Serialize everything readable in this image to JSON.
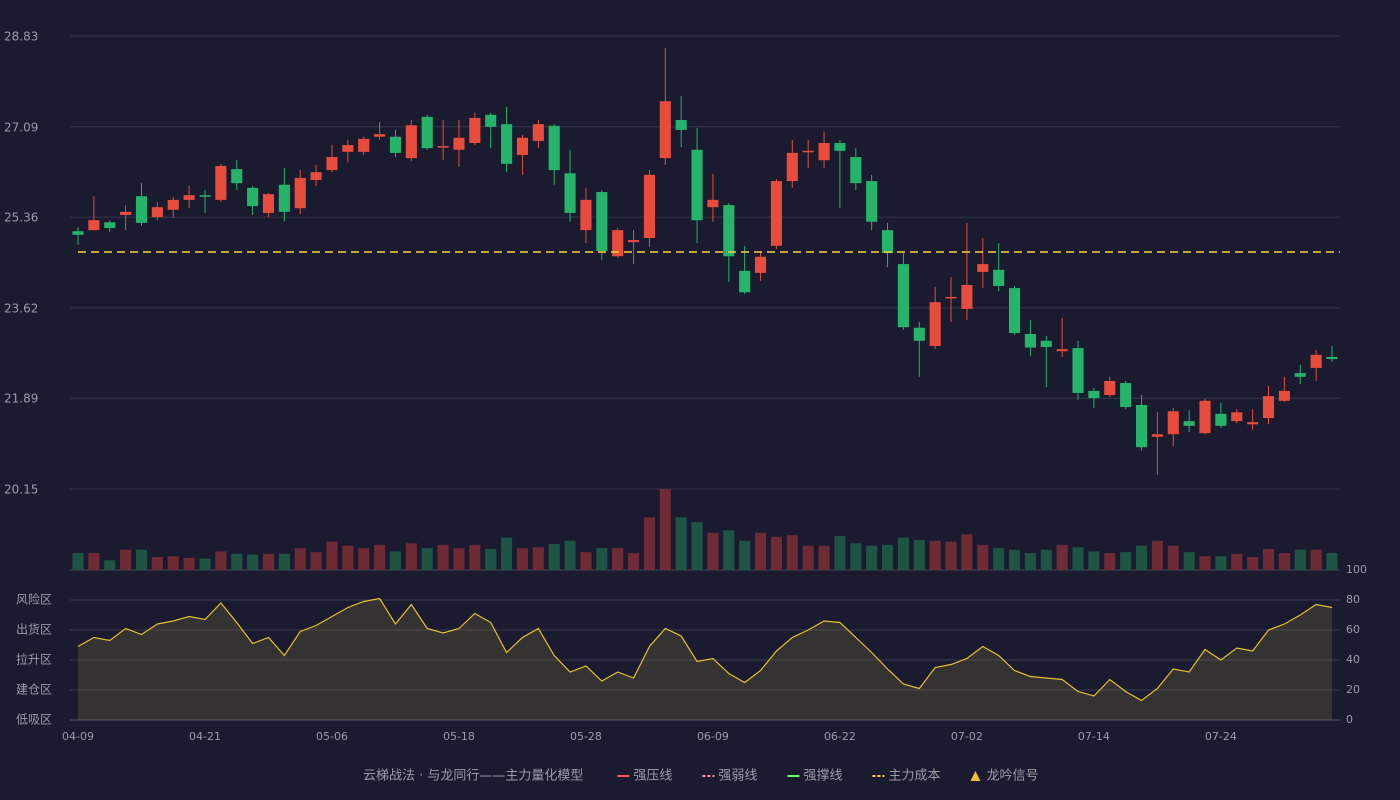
{
  "chart_data": [
    {
      "type": "candlestick",
      "up_color": "#e84c3d",
      "down_color": "#26b36a",
      "volume_up_color": "#6e2a35",
      "volume_down_color": "#1e5444",
      "categories": [
        "04-09",
        null,
        null,
        null,
        null,
        null,
        null,
        null,
        "04-21",
        null,
        null,
        null,
        null,
        null,
        null,
        null,
        "05-06",
        null,
        null,
        null,
        null,
        null,
        null,
        null,
        "05-18",
        null,
        null,
        null,
        null,
        null,
        null,
        null,
        "05-28",
        null,
        null,
        null,
        null,
        null,
        null,
        null,
        "06-09",
        null,
        null,
        null,
        null,
        null,
        null,
        null,
        "06-22",
        null,
        null,
        null,
        null,
        null,
        null,
        null,
        "07-02",
        null,
        null,
        null,
        null,
        null,
        null,
        null,
        "07-14",
        null,
        null,
        null,
        null,
        null,
        null,
        null,
        "07-24",
        null,
        null,
        null,
        null,
        null,
        null,
        null
      ],
      "open": [
        25.09,
        25.11,
        25.26,
        25.4,
        25.76,
        25.36,
        25.5,
        25.69,
        25.78,
        25.69,
        26.28,
        25.92,
        25.44,
        25.98,
        25.53,
        26.07,
        26.26,
        26.61,
        26.61,
        26.9,
        26.9,
        26.49,
        27.28,
        26.7,
        26.65,
        26.78,
        27.32,
        27.14,
        26.55,
        26.82,
        27.11,
        26.2,
        25.11,
        25.84,
        24.61,
        24.88,
        24.96,
        26.49,
        27.22,
        26.65,
        25.55,
        25.59,
        24.33,
        24.29,
        24.81,
        26.05,
        26.61,
        26.45,
        26.78,
        26.51,
        26.05,
        25.11,
        24.46,
        23.24,
        22.89,
        23.81,
        23.6,
        24.31,
        24.35,
        24.0,
        23.12,
        22.99,
        22.79,
        22.85,
        22.03,
        21.95,
        22.18,
        21.76,
        21.15,
        21.2,
        21.45,
        21.22,
        21.59,
        21.45,
        21.39,
        21.51,
        21.84,
        22.37,
        22.47,
        22.68
      ],
      "high": [
        25.17,
        25.76,
        25.3,
        25.59,
        26.01,
        25.65,
        25.75,
        25.96,
        25.88,
        26.38,
        26.45,
        25.96,
        25.82,
        26.3,
        26.26,
        26.36,
        26.74,
        26.84,
        26.9,
        27.18,
        27.03,
        27.22,
        27.32,
        27.22,
        27.22,
        27.36,
        27.36,
        27.47,
        26.93,
        27.22,
        27.14,
        26.65,
        25.92,
        25.88,
        25.15,
        25.11,
        26.26,
        28.6,
        27.68,
        27.07,
        26.19,
        25.63,
        24.81,
        24.71,
        26.09,
        26.84,
        26.84,
        27.0,
        26.84,
        26.68,
        26.17,
        25.25,
        24.67,
        23.35,
        24.02,
        24.21,
        25.25,
        24.96,
        24.86,
        24.04,
        23.39,
        23.08,
        23.43,
        22.99,
        22.09,
        22.3,
        22.22,
        21.95,
        21.62,
        21.7,
        21.66,
        21.88,
        21.8,
        21.68,
        21.68,
        22.12,
        22.3,
        22.53,
        22.81,
        22.89
      ],
      "low": [
        24.83,
        25.11,
        25.07,
        25.11,
        25.19,
        25.3,
        25.34,
        25.53,
        25.44,
        25.65,
        25.88,
        25.4,
        25.36,
        25.28,
        25.42,
        25.96,
        26.22,
        26.41,
        26.55,
        26.84,
        26.51,
        26.43,
        26.65,
        26.45,
        26.32,
        26.74,
        26.68,
        26.22,
        26.17,
        26.68,
        25.98,
        25.27,
        24.86,
        24.54,
        24.58,
        24.46,
        24.79,
        26.36,
        26.7,
        24.86,
        25.27,
        24.12,
        23.88,
        24.14,
        24.75,
        25.92,
        26.3,
        26.3,
        25.53,
        25.88,
        25.11,
        24.4,
        23.2,
        22.3,
        22.83,
        23.35,
        23.39,
        24.0,
        23.94,
        23.1,
        22.7,
        22.1,
        22.68,
        21.86,
        21.7,
        21.91,
        21.68,
        20.88,
        20.42,
        20.97,
        21.24,
        21.2,
        21.32,
        21.41,
        21.28,
        21.39,
        21.82,
        22.16,
        22.22,
        22.58
      ],
      "close": [
        25.02,
        25.3,
        25.15,
        25.46,
        25.25,
        25.55,
        25.69,
        25.78,
        25.75,
        26.34,
        26.01,
        25.57,
        25.8,
        25.46,
        26.11,
        26.22,
        26.51,
        26.74,
        26.86,
        26.95,
        26.59,
        27.12,
        26.68,
        26.72,
        26.88,
        27.26,
        27.09,
        26.38,
        26.88,
        27.14,
        26.26,
        25.44,
        25.69,
        24.71,
        25.11,
        24.92,
        26.17,
        27.58,
        27.03,
        25.3,
        25.69,
        24.61,
        23.92,
        24.6,
        26.05,
        26.59,
        26.63,
        26.78,
        26.63,
        26.01,
        25.27,
        24.67,
        23.25,
        22.99,
        23.73,
        23.83,
        24.06,
        24.46,
        24.04,
        23.14,
        22.86,
        22.87,
        22.83,
        21.99,
        21.89,
        22.22,
        21.72,
        20.95,
        21.2,
        21.64,
        21.36,
        21.84,
        21.36,
        21.62,
        21.43,
        21.93,
        22.03,
        22.3,
        22.72,
        22.64
      ],
      "volume": [
        21,
        21,
        12,
        25,
        25,
        16,
        17,
        15,
        14,
        23,
        20,
        19,
        20,
        20,
        27,
        22,
        35,
        30,
        27,
        31,
        23,
        33,
        27,
        31,
        27,
        31,
        26,
        40,
        27,
        28,
        32,
        36,
        22,
        27,
        27,
        21,
        65,
        100,
        65,
        59,
        46,
        49,
        36,
        46,
        41,
        43,
        30,
        30,
        42,
        33,
        30,
        31,
        40,
        37,
        36,
        35,
        44,
        31,
        27,
        25,
        21,
        25,
        31,
        28,
        23,
        21,
        22,
        30,
        36,
        30,
        22,
        17,
        17,
        20,
        16,
        26,
        21,
        25,
        25,
        21
      ],
      "volume_ylim": [
        0,
        100
      ],
      "ylim": [
        20.15,
        28.83
      ],
      "yticks": [
        28.83,
        27.09,
        25.36,
        23.62,
        21.89,
        20.15
      ],
      "grid": true,
      "legend_title": "云梯战法 · 与龙同行——主力量化模型",
      "legend_title_color": "#e8c46a",
      "series": [
        {
          "name": "强压线",
          "color": "#ff4d4d",
          "style": "line"
        },
        {
          "name": "强弱线",
          "color": "#ff8fa0",
          "style": "dash"
        },
        {
          "name": "强撑线",
          "color": "#66ff66",
          "style": "line"
        },
        {
          "name": "主力成本",
          "color": "#ffd23f",
          "style": "dash",
          "value": 24.69
        },
        {
          "name": "龙吟信号",
          "color": "#f5b942",
          "style": "triangle"
        }
      ]
    },
    {
      "type": "area",
      "values": [
        49,
        55,
        53,
        61,
        57,
        64,
        66,
        69,
        67,
        78,
        65,
        51,
        55,
        43,
        59,
        63,
        69,
        75,
        79,
        81,
        64,
        77,
        61,
        58,
        61,
        71,
        65,
        45,
        55,
        61,
        43,
        32,
        36,
        26,
        32,
        28,
        49,
        61,
        56,
        39,
        41,
        31,
        25,
        33,
        46,
        55,
        60,
        66,
        65,
        55,
        45,
        34,
        24,
        21,
        35,
        37,
        41,
        49,
        43,
        33,
        29,
        28,
        27,
        19,
        16,
        27,
        19,
        13,
        21,
        34,
        32,
        47,
        40,
        48,
        46,
        60,
        64,
        70,
        77,
        75
      ],
      "color": "#e5c02e",
      "ylim": [
        0,
        100
      ],
      "yticks": [
        0,
        20,
        40,
        60,
        80,
        100
      ],
      "ytick_colors": [
        "#ff4d4d",
        "#ff4d4d",
        "#4d9bff",
        "#ff4dff",
        "#ffa64d",
        "#4dff4d"
      ],
      "zones": [
        {
          "label": "风险区",
          "value": 80,
          "color": "#ffa64d"
        },
        {
          "label": "出货区",
          "value": 60,
          "color": "#ff4dff"
        },
        {
          "label": "拉升区",
          "value": 40,
          "color": "#4d9bff"
        },
        {
          "label": "建仓区",
          "value": 20,
          "color": "#ff5555"
        },
        {
          "label": "低吸区",
          "value": 0,
          "color": "#ff5566"
        }
      ]
    }
  ]
}
